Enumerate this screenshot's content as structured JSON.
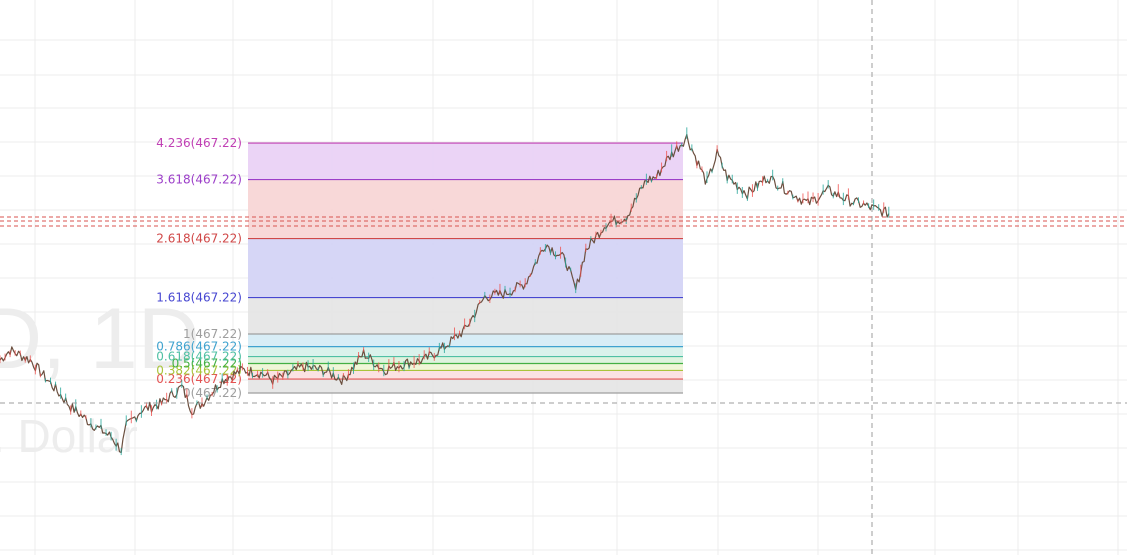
{
  "watermark": {
    "line1": "D, 1D",
    "line2": ". Dollar"
  },
  "chart_data": {
    "type": "line",
    "x_domain": [
      0,
      100
    ],
    "y_domain": [
      0,
      100
    ],
    "series": [
      {
        "x": [
          0,
          1,
          3,
          5,
          7,
          9,
          11,
          12,
          12.5,
          14,
          16,
          18,
          19,
          20,
          22,
          24,
          26,
          27,
          28,
          30,
          32,
          34,
          36,
          38,
          40,
          42,
          44,
          46,
          48,
          50,
          52,
          54,
          56,
          57,
          58,
          60,
          62,
          64,
          65,
          66,
          68,
          69,
          70,
          71,
          72,
          74,
          76,
          78,
          80,
          82,
          84,
          86,
          88
        ],
        "y": [
          33,
          36,
          33,
          26,
          19,
          14,
          10,
          6,
          13,
          18,
          20,
          25,
          18,
          20,
          27,
          30,
          29,
          27,
          28,
          31,
          30,
          27,
          35,
          30,
          32,
          33,
          37,
          42,
          52,
          53,
          56,
          68,
          63,
          54,
          66,
          74,
          76,
          87,
          88,
          93,
          100,
          93,
          86,
          95,
          88,
          83,
          88,
          84,
          80,
          84,
          81,
          79,
          77
        ]
      }
    ],
    "fibonacci": {
      "levels": [
        {
          "ratio": 0,
          "label": "0(467.22)",
          "value": 0,
          "line_color": "#9e9e9e",
          "text_color": "#9e9e9e",
          "fill": "#e6e6e6"
        },
        {
          "ratio": 0.236,
          "label": "0.236(467.22)",
          "value": 0.236,
          "line_color": "#e35353",
          "text_color": "#e35353",
          "fill": "#fbe0e0"
        },
        {
          "ratio": 0.382,
          "label": "0.382(467.22)",
          "value": 0.382,
          "line_color": "#a9c43a",
          "text_color": "#a9c43a",
          "fill": "#eef5d6"
        },
        {
          "ratio": 0.5,
          "label": "0.5(467.22)",
          "value": 0.5,
          "line_color": "#43b043",
          "text_color": "#43b043",
          "fill": "#dcf2dc"
        },
        {
          "ratio": 0.618,
          "label": "0.618(467.22)",
          "value": 0.618,
          "line_color": "#4fc0a4",
          "text_color": "#4fc0a4",
          "fill": "#d8f1ea"
        },
        {
          "ratio": 0.786,
          "label": "0.786(467.22)",
          "value": 0.786,
          "line_color": "#3fa3cf",
          "text_color": "#3fa3cf",
          "fill": "#d6ecf6"
        },
        {
          "ratio": 1,
          "label": "1(467.22)",
          "value": 1,
          "line_color": "#9e9e9e",
          "text_color": "#9e9e9e",
          "fill": "#e6e6e6"
        },
        {
          "ratio": 1.618,
          "label": "1.618(467.22)",
          "value": 1.618,
          "line_color": "#4747d1",
          "text_color": "#4747d1",
          "fill": "#d4d4f5"
        },
        {
          "ratio": 2.618,
          "label": "2.618(467.22)",
          "value": 2.618,
          "line_color": "#d04848",
          "text_color": "#d04848",
          "fill": "#f8d6d6"
        },
        {
          "ratio": 3.618,
          "label": "3.618(467.22)",
          "value": 3.618,
          "line_color": "#9c3fc9",
          "text_color": "#9c3fc9",
          "fill": "#ead2f6"
        },
        {
          "ratio": 4.236,
          "label": "4.236(467.22)",
          "value": 4.236,
          "line_color": "#c03fb4",
          "text_color": "#c03fb4",
          "fill": null
        }
      ]
    },
    "colors": {
      "price_line": "#6b4f3f",
      "current_price_line": "#d9534f",
      "crosshair": "#9e9e9e",
      "grid": "#ececec"
    }
  }
}
